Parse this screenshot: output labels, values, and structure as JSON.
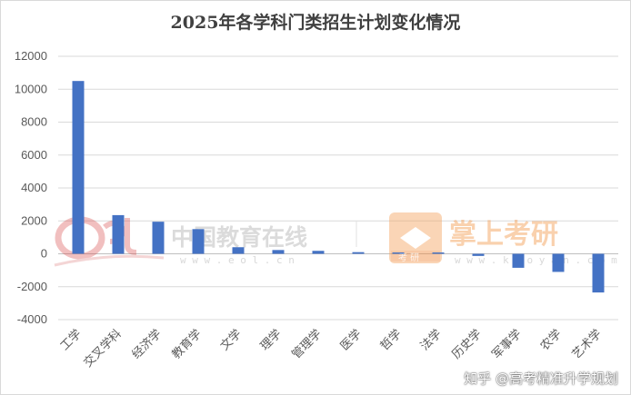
{
  "chart_data": {
    "type": "bar",
    "title": "2025年各学科门类招生计划变化情况",
    "categories": [
      "工学",
      "交叉学科",
      "经济学",
      "教育学",
      "文学",
      "理学",
      "管理学",
      "医学",
      "哲学",
      "法学",
      "历史学",
      "军事学",
      "农学",
      "艺术学"
    ],
    "values": [
      10500,
      2350,
      1950,
      1500,
      400,
      230,
      180,
      100,
      80,
      80,
      -130,
      -850,
      -1100,
      -2350
    ],
    "yticks": [
      12000,
      10000,
      8000,
      6000,
      4000,
      2000,
      0,
      -2000,
      -4000
    ],
    "ylim": [
      -4000,
      12000
    ],
    "xlabel": "",
    "ylabel": "",
    "grid": true,
    "legend": "none",
    "bar_color": "#4472c4"
  },
  "watermarks": {
    "eol_name": "中国教育在线",
    "eol_url": "w w w . e o l . c n",
    "kaoyan_name": "掌上考研",
    "kaoyan_badge": "考 研",
    "kaoyan_url": "w w w . k a o y a n . c o m"
  },
  "credit": "知乎 @高考精准升学规划"
}
